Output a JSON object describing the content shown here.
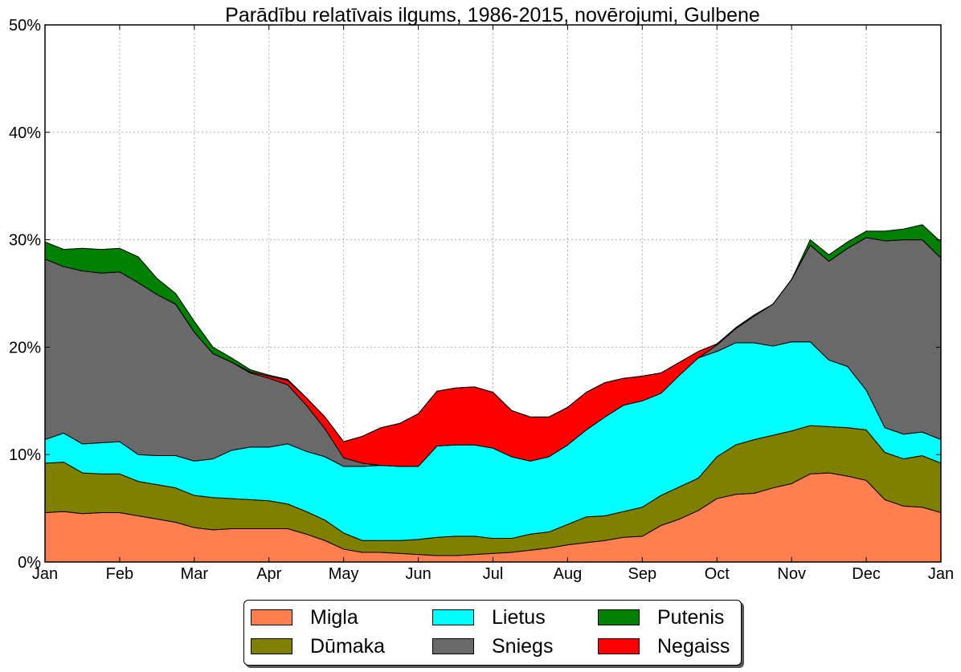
{
  "chart_data": {
    "type": "area",
    "stacked": true,
    "title": "Parādību relatīvais ilgums, 1986-2015, novērojumi, Gulbene",
    "xlabel": "",
    "ylabel": "",
    "ylim": [
      0,
      50
    ],
    "yticks": [
      0,
      10,
      20,
      30,
      40,
      50
    ],
    "ytick_labels": [
      "0%",
      "10%",
      "20%",
      "30%",
      "40%",
      "50%"
    ],
    "xlim": [
      0,
      12
    ],
    "xticks": [
      0,
      1,
      2,
      3,
      4,
      5,
      6,
      7,
      8,
      9,
      10,
      11,
      12
    ],
    "xtick_labels": [
      "Jan",
      "Feb",
      "Mar",
      "Apr",
      "May",
      "Jun",
      "Jul",
      "Aug",
      "Sep",
      "Oct",
      "Nov",
      "Dec",
      "Jan"
    ],
    "grid": true,
    "legend_position": "bottom-center",
    "x": [
      0,
      0.25,
      0.5,
      0.75,
      1,
      1.25,
      1.5,
      1.75,
      2,
      2.25,
      2.5,
      2.75,
      3,
      3.25,
      3.5,
      3.75,
      4,
      4.25,
      4.5,
      4.75,
      5,
      5.25,
      5.5,
      5.75,
      6,
      6.25,
      6.5,
      6.75,
      7,
      7.25,
      7.5,
      7.75,
      8,
      8.25,
      8.5,
      8.75,
      9,
      9.25,
      9.5,
      9.75,
      10,
      10.25,
      10.5,
      10.75,
      11,
      11.25,
      11.5,
      11.75,
      12
    ],
    "series": [
      {
        "name": "Migla",
        "color": "#FF7F50",
        "values": [
          4.6,
          4.7,
          4.5,
          4.6,
          4.6,
          4.3,
          4.0,
          3.7,
          3.2,
          3.0,
          3.1,
          3.1,
          3.1,
          3.1,
          2.6,
          2.0,
          1.2,
          0.9,
          0.9,
          0.8,
          0.7,
          0.6,
          0.6,
          0.7,
          0.8,
          0.9,
          1.1,
          1.3,
          1.6,
          1.8,
          2.0,
          2.3,
          2.4,
          3.4,
          4.0,
          4.8,
          5.9,
          6.3,
          6.4,
          6.9,
          7.3,
          8.2,
          8.3,
          8.0,
          7.6,
          5.8,
          5.2,
          5.1,
          4.6
        ]
      },
      {
        "name": "Dūmaka",
        "color": "#808000",
        "values": [
          4.6,
          4.6,
          3.8,
          3.6,
          3.6,
          3.2,
          3.2,
          3.2,
          3.0,
          3.0,
          2.8,
          2.7,
          2.6,
          2.3,
          2.1,
          1.9,
          1.5,
          1.1,
          1.1,
          1.2,
          1.4,
          1.7,
          1.8,
          1.7,
          1.4,
          1.3,
          1.5,
          1.5,
          1.9,
          2.4,
          2.3,
          2.4,
          2.7,
          2.8,
          3.0,
          3.0,
          3.9,
          4.6,
          5.0,
          4.9,
          4.9,
          4.5,
          4.3,
          4.5,
          4.7,
          4.4,
          4.4,
          4.8,
          4.6
        ]
      },
      {
        "name": "Lietus",
        "color": "#00FFFF",
        "values": [
          2.2,
          2.7,
          2.7,
          2.9,
          3.0,
          2.5,
          2.7,
          3.0,
          3.2,
          3.6,
          4.5,
          4.9,
          5.0,
          5.6,
          5.6,
          5.9,
          6.2,
          6.9,
          7.0,
          6.9,
          6.8,
          8.5,
          8.5,
          8.5,
          8.4,
          7.6,
          6.8,
          7.0,
          7.4,
          8.1,
          9.2,
          9.9,
          9.9,
          9.5,
          10.4,
          11.2,
          9.8,
          9.5,
          9.0,
          8.3,
          8.3,
          7.8,
          6.2,
          5.7,
          3.7,
          2.3,
          2.3,
          2.2,
          2.2
        ]
      },
      {
        "name": "Sniegs",
        "color": "#696969",
        "values": [
          16.8,
          15.5,
          16.1,
          15.8,
          15.8,
          16.0,
          15.0,
          14.1,
          12.0,
          9.8,
          8.2,
          6.9,
          6.4,
          5.5,
          4.3,
          2.6,
          0.8,
          0.3,
          0.0,
          0.0,
          0.0,
          0.0,
          0.0,
          0.0,
          0.0,
          0.0,
          0.0,
          0.0,
          0.0,
          0.0,
          0.0,
          0.0,
          0.0,
          0.0,
          0.0,
          0.0,
          0.6,
          1.3,
          2.5,
          3.9,
          5.8,
          9.0,
          9.2,
          11.0,
          14.2,
          17.4,
          18.1,
          17.9,
          16.9
        ]
      },
      {
        "name": "Negaiss",
        "color": "#FF0000",
        "values": [
          0.0,
          0.0,
          0.0,
          0.0,
          0.0,
          0.0,
          0.0,
          0.0,
          0.0,
          0.0,
          0.0,
          0.1,
          0.2,
          0.4,
          0.7,
          1.1,
          1.5,
          2.5,
          3.5,
          4.0,
          4.9,
          5.1,
          5.3,
          5.4,
          5.2,
          4.3,
          4.1,
          3.7,
          3.5,
          3.5,
          3.2,
          2.5,
          2.3,
          1.9,
          1.2,
          0.6,
          0.1,
          0.1,
          0.1,
          0.0,
          0.0,
          0.0,
          0.0,
          0.0,
          0.0,
          0.0,
          0.0,
          0.0,
          0.0
        ]
      },
      {
        "name": "Putenis",
        "color": "#008000",
        "values": [
          1.6,
          1.6,
          2.1,
          2.2,
          2.2,
          2.4,
          1.5,
          1.0,
          1.0,
          0.6,
          0.4,
          0.2,
          0.1,
          0.1,
          0.0,
          0.0,
          0.0,
          0.0,
          0.0,
          0.0,
          0.0,
          0.0,
          0.0,
          0.0,
          0.0,
          0.0,
          0.0,
          0.0,
          0.0,
          0.0,
          0.0,
          0.0,
          0.0,
          0.0,
          0.0,
          0.0,
          0.0,
          0.0,
          0.0,
          0.0,
          0.0,
          0.5,
          0.6,
          0.6,
          0.6,
          0.9,
          1.0,
          1.4,
          1.5
        ]
      }
    ]
  },
  "legend": {
    "items": [
      {
        "label": "Migla",
        "color": "#FF7F50"
      },
      {
        "label": "Dūmaka",
        "color": "#808000"
      },
      {
        "label": "Lietus",
        "color": "#00FFFF"
      },
      {
        "label": "Sniegs",
        "color": "#696969"
      },
      {
        "label": "Putenis",
        "color": "#008000"
      },
      {
        "label": "Negaiss",
        "color": "#FF0000"
      }
    ]
  }
}
